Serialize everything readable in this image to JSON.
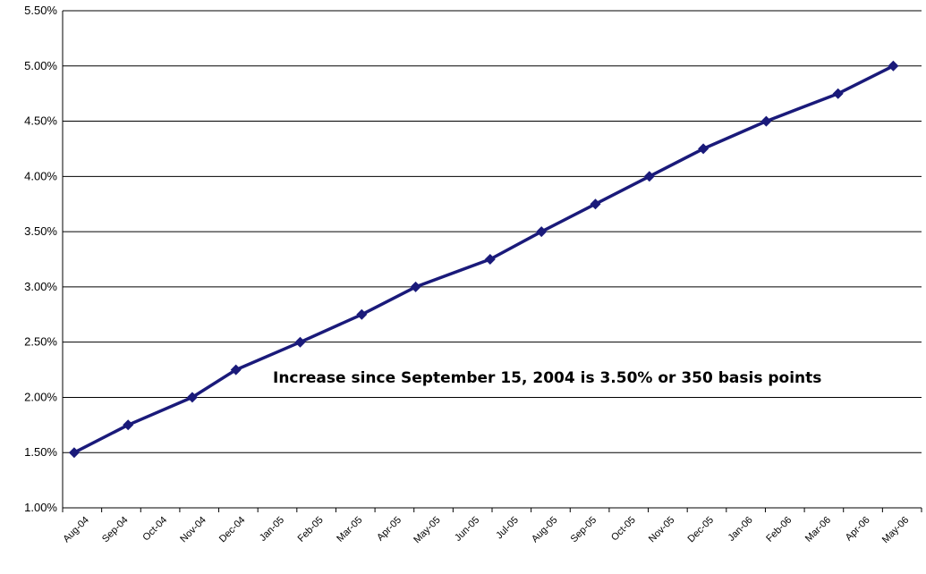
{
  "chart_data": {
    "type": "line",
    "title": "",
    "xlabel": "",
    "ylabel": "",
    "ylim": [
      0.01,
      0.055
    ],
    "y_ticks": [
      "1.00%",
      "1.50%",
      "2.00%",
      "2.50%",
      "3.00%",
      "3.50%",
      "4.00%",
      "4.50%",
      "5.00%",
      "5.50%"
    ],
    "grid": "horizontal",
    "legend": "none",
    "categories": [
      "Aug-04",
      "Sep-04",
      "Oct-04",
      "Nov-04",
      "Dec-04",
      "Jan-05",
      "Feb-05",
      "Mar-05",
      "Apr-05",
      "May-05",
      "Jun-05",
      "Jul-05",
      "Aug-05",
      "Sep-05",
      "Oct-05",
      "Nov-05",
      "Dec-05",
      "Jan-06",
      "Feb-06",
      "Mar-06",
      "Apr-06",
      "May-06"
    ],
    "series": [
      {
        "color": "#1a1a7a",
        "marker": "diamond",
        "points": [
          {
            "x": "2004-08-10",
            "y": 0.015
          },
          {
            "x": "2004-09-21",
            "y": 0.0175
          },
          {
            "x": "2004-11-10",
            "y": 0.02
          },
          {
            "x": "2004-12-14",
            "y": 0.0225
          },
          {
            "x": "2005-02-02",
            "y": 0.025
          },
          {
            "x": "2005-03-22",
            "y": 0.0275
          },
          {
            "x": "2005-05-03",
            "y": 0.03
          },
          {
            "x": "2005-06-30",
            "y": 0.0325
          },
          {
            "x": "2005-08-09",
            "y": 0.035
          },
          {
            "x": "2005-09-20",
            "y": 0.0375
          },
          {
            "x": "2005-11-01",
            "y": 0.04
          },
          {
            "x": "2005-12-13",
            "y": 0.0425
          },
          {
            "x": "2006-01-31",
            "y": 0.045
          },
          {
            "x": "2006-03-28",
            "y": 0.0475
          },
          {
            "x": "2006-05-10",
            "y": 0.05
          }
        ]
      }
    ],
    "annotations": [
      {
        "text": "Increase since September 15, 2004 is 3.50% or 350 basis points"
      }
    ]
  }
}
